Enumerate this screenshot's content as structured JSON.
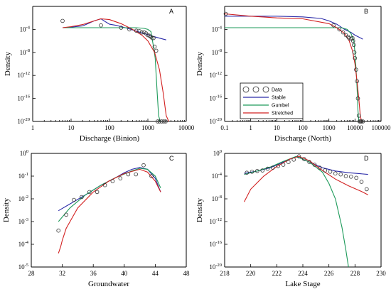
{
  "legend": {
    "items": [
      {
        "label": "Data",
        "kind": "circle"
      },
      {
        "label": "Stable",
        "kind": "line",
        "color": "#2a2aa8"
      },
      {
        "label": "Gumbel",
        "kind": "line",
        "color": "#1d9a5a"
      },
      {
        "label": "Stretched",
        "kind": "line",
        "color": "#d22020"
      }
    ]
  },
  "colors": {
    "stable": "#2a2aa8",
    "gumbel": "#1d9a5a",
    "stretched": "#d22020",
    "data": "#333333"
  },
  "chart_data": [
    {
      "id": "A",
      "type": "line",
      "panel_letter": "A",
      "xlabel": "Discharge (Binion)",
      "ylabel": "Density",
      "xscale": "log",
      "yscale": "log",
      "xlim": [
        1,
        10000
      ],
      "ylim": [
        1e-20,
        1
      ],
      "xticks": [
        {
          "v": 1,
          "t": "1"
        },
        {
          "v": 10,
          "t": "10"
        },
        {
          "v": 100,
          "t": "100"
        },
        {
          "v": 1000,
          "t": "1000"
        },
        {
          "v": 10000,
          "t": "10000"
        }
      ],
      "yticks": [
        {
          "v": 1e-20,
          "b": "10",
          "e": "-20"
        },
        {
          "v": 1e-16,
          "b": "10",
          "e": "-16"
        },
        {
          "v": 1e-12,
          "b": "10",
          "e": "-12"
        },
        {
          "v": 1e-08,
          "b": "10",
          "e": "-8"
        },
        {
          "v": 0.0001,
          "b": "10",
          "e": "-4"
        }
      ],
      "series": [
        {
          "key": "stable",
          "x": [
            6,
            10,
            20,
            40,
            60,
            80,
            100,
            150,
            200,
            300,
            500,
            800,
            1200,
            2000,
            3000
          ],
          "y": [
            0.0002,
            0.00025,
            0.0004,
            0.003,
            0.007,
            0.002,
            0.0008,
            0.0005,
            0.0003,
            0.00015,
            5e-05,
            2e-05,
            8e-06,
            3e-06,
            1.5e-06
          ]
        },
        {
          "key": "gumbel",
          "x": [
            6,
            50,
            200,
            500,
            800,
            1000,
            1200,
            1400,
            1550,
            1650,
            1750,
            1900,
            2100
          ],
          "y": [
            0.0002,
            0.0002,
            0.0002,
            0.0002,
            0.00015,
            0.0001,
            4e-05,
            1e-07,
            1e-09,
            1e-12,
            1e-15,
            1e-19,
            1e-20
          ]
        },
        {
          "key": "stretched",
          "x": [
            6,
            10,
            20,
            40,
            60,
            100,
            200,
            400,
            700,
            1000,
            1500,
            2000,
            2500,
            3000,
            3500
          ],
          "y": [
            0.0002,
            0.0003,
            0.0007,
            0.003,
            0.007,
            0.005,
            0.001,
            0.0001,
            1e-05,
            1e-06,
            1e-08,
            1e-11,
            1e-15,
            1e-19,
            1e-20
          ]
        }
      ],
      "points": {
        "x": [
          6,
          60,
          200,
          330,
          500,
          600,
          700,
          800,
          900,
          1000,
          1100,
          1200,
          1300,
          1400,
          1500,
          1650,
          1800,
          2000,
          2300,
          2600,
          2900
        ],
        "y": [
          0.003,
          0.0005,
          0.0002,
          0.0001,
          6e-05,
          5e-05,
          3e-05,
          3e-05,
          2e-05,
          1e-05,
          8e-06,
          5e-06,
          3e-06,
          3e-06,
          1e-07,
          2e-08,
          1e-20,
          1e-20,
          1e-20,
          1e-20,
          1e-20
        ]
      }
    },
    {
      "id": "B",
      "type": "line",
      "panel_letter": "B",
      "xlabel": "Discharge (North)",
      "ylabel": "Density",
      "xscale": "log",
      "yscale": "log",
      "xlim": [
        0.1,
        100000
      ],
      "ylim": [
        1e-20,
        1
      ],
      "xticks": [
        {
          "v": 0.1,
          "t": "0.1"
        },
        {
          "v": 1,
          "t": "1"
        },
        {
          "v": 10,
          "t": "10"
        },
        {
          "v": 100,
          "t": "100"
        },
        {
          "v": 1000,
          "t": "1000"
        },
        {
          "v": 10000,
          "t": "10000"
        },
        {
          "v": 100000,
          "t": "100000"
        }
      ],
      "yticks": [
        {
          "v": 1e-20,
          "b": "10",
          "e": "-20"
        },
        {
          "v": 1e-16,
          "b": "10",
          "e": "-16"
        },
        {
          "v": 1e-12,
          "b": "10",
          "e": "-12"
        },
        {
          "v": 1e-08,
          "b": "10",
          "e": "-8"
        },
        {
          "v": 0.0001,
          "b": "10",
          "e": "-4"
        }
      ],
      "series": [
        {
          "key": "stable",
          "x": [
            0.1,
            1,
            10,
            100,
            500,
            1000,
            2000,
            4000,
            7000,
            10000,
            15000,
            20000
          ],
          "y": [
            0.02,
            0.02,
            0.02,
            0.015,
            0.008,
            0.003,
            0.0008,
            0.0001,
            3e-05,
            1e-05,
            4e-06,
            2e-06
          ]
        },
        {
          "key": "gumbel",
          "x": [
            0.1,
            1,
            100,
            1000,
            3000,
            5000,
            7000,
            9000,
            10000,
            11000,
            12000,
            13000,
            14000
          ],
          "y": [
            0.0002,
            0.0002,
            0.0002,
            0.0002,
            0.0002,
            0.0001,
            2e-05,
            1e-06,
            1e-08,
            1e-11,
            1e-14,
            1e-18,
            1e-20
          ]
        },
        {
          "key": "stretched",
          "x": [
            0.1,
            1,
            10,
            100,
            1000,
            2000,
            4000,
            6000,
            8000,
            10000,
            12000,
            14000,
            16000,
            18000
          ],
          "y": [
            0.05,
            0.02,
            0.01,
            0.007,
            0.001,
            0.0002,
            2e-05,
            1e-06,
            2e-08,
            1e-10,
            1e-13,
            1e-16,
            1e-19,
            1e-20
          ]
        }
      ],
      "points": {
        "x": [
          0.11,
          1500,
          2500,
          3500,
          4500,
          5500,
          6000,
          7000,
          8000,
          8500,
          9000,
          9500,
          10000,
          11000,
          12000,
          13000,
          14000,
          15000,
          16000,
          17000,
          18000,
          20000
        ],
        "y": [
          0.05,
          0.0005,
          0.0001,
          3e-05,
          1e-05,
          5e-06,
          3e-06,
          2e-06,
          3e-06,
          1e-06,
          2e-07,
          1e-08,
          1e-09,
          1e-11,
          1e-13,
          1e-16,
          1e-19,
          1e-20,
          1e-20,
          1e-20,
          1e-20,
          1e-20
        ]
      }
    },
    {
      "id": "C",
      "type": "line",
      "panel_letter": "C",
      "xlabel": "Groundwater",
      "ylabel": "Density",
      "xscale": "linear",
      "yscale": "log",
      "xlim": [
        28,
        48
      ],
      "ylim": [
        1e-05,
        1
      ],
      "xticks": [
        {
          "v": 28,
          "t": "28"
        },
        {
          "v": 32,
          "t": "32"
        },
        {
          "v": 36,
          "t": "36"
        },
        {
          "v": 40,
          "t": "40"
        },
        {
          "v": 44,
          "t": "44"
        },
        {
          "v": 48,
          "t": "48"
        }
      ],
      "yticks": [
        {
          "v": 1e-05,
          "b": "10",
          "e": "-5"
        },
        {
          "v": 0.0001,
          "b": "10",
          "e": "-4"
        },
        {
          "v": 0.001,
          "b": "10",
          "e": "-3"
        },
        {
          "v": 0.01,
          "b": "10",
          "e": "-2"
        },
        {
          "v": 0.1,
          "b": "10",
          "e": "-1"
        },
        {
          "v": 1,
          "b": "10",
          "e": "0"
        }
      ],
      "series": [
        {
          "key": "stable",
          "x": [
            31.5,
            33,
            35,
            37,
            39,
            40,
            41,
            42,
            43,
            44,
            44.7
          ],
          "y": [
            0.003,
            0.006,
            0.015,
            0.04,
            0.09,
            0.14,
            0.2,
            0.24,
            0.2,
            0.08,
            0.02
          ]
        },
        {
          "key": "gumbel",
          "x": [
            31.5,
            33,
            35,
            37,
            39,
            41,
            42,
            43,
            44,
            44.7
          ],
          "y": [
            0.001,
            0.004,
            0.015,
            0.04,
            0.09,
            0.17,
            0.22,
            0.2,
            0.1,
            0.03
          ]
        },
        {
          "key": "stretched",
          "x": [
            31.5,
            31.8,
            32,
            32.5,
            33,
            34,
            36,
            38,
            40,
            42,
            43,
            44,
            44.7
          ],
          "y": [
            4e-05,
            8e-05,
            0.00015,
            0.0005,
            0.001,
            0.004,
            0.02,
            0.06,
            0.13,
            0.2,
            0.15,
            0.06,
            0.02
          ]
        }
      ],
      "points": {
        "x": [
          31.5,
          32.5,
          33.5,
          34.5,
          35.5,
          36.5,
          37.5,
          38.5,
          39.5,
          40.5,
          41.5,
          42.5,
          43.5
        ],
        "y": [
          0.0004,
          0.002,
          0.009,
          0.012,
          0.02,
          0.02,
          0.04,
          0.06,
          0.08,
          0.12,
          0.12,
          0.3,
          0.1
        ]
      }
    },
    {
      "id": "D",
      "type": "line",
      "panel_letter": "D",
      "xlabel": "Lake Stage",
      "ylabel": "Density",
      "xscale": "linear",
      "yscale": "log",
      "xlim": [
        218,
        230
      ],
      "ylim": [
        1e-20,
        1
      ],
      "xticks": [
        {
          "v": 218,
          "t": "218"
        },
        {
          "v": 220,
          "t": "220"
        },
        {
          "v": 222,
          "t": "222"
        },
        {
          "v": 224,
          "t": "224"
        },
        {
          "v": 226,
          "t": "226"
        },
        {
          "v": 228,
          "t": "228"
        },
        {
          "v": 230,
          "t": "230"
        }
      ],
      "yticks": [
        {
          "v": 1e-20,
          "b": "10",
          "e": "-20"
        },
        {
          "v": 1e-16,
          "b": "10",
          "e": "-16"
        },
        {
          "v": 1e-12,
          "b": "10",
          "e": "-12"
        },
        {
          "v": 1e-08,
          "b": "10",
          "e": "-8"
        },
        {
          "v": 0.0001,
          "b": "10",
          "e": "-4"
        },
        {
          "v": 1,
          "b": "10",
          "e": "0"
        }
      ],
      "series": [
        {
          "key": "stable",
          "x": [
            219.5,
            220.5,
            221.5,
            222.5,
            223.5,
            224.5,
            225.5,
            226.5,
            227.5,
            229
          ],
          "y": [
            0.0003,
            0.0008,
            0.003,
            0.03,
            0.3,
            0.03,
            0.003,
            0.0008,
            0.0004,
            0.0002
          ]
        },
        {
          "key": "gumbel",
          "x": [
            219.5,
            220.5,
            221.5,
            222.5,
            223.5,
            224.5,
            225.5,
            226,
            226.5,
            227,
            227.3,
            227.5
          ],
          "y": [
            0.0002,
            0.0008,
            0.004,
            0.04,
            0.3,
            0.03,
            0.0005,
            5e-06,
            1e-08,
            1e-13,
            1e-17,
            1e-20
          ]
        },
        {
          "key": "stretched",
          "x": [
            219.5,
            220,
            221,
            222,
            223,
            223.7,
            224.5,
            225.5,
            226.5,
            227.5,
            228.5,
            229
          ],
          "y": [
            3e-09,
            5e-07,
            0.0001,
            0.005,
            0.1,
            0.3,
            0.05,
            0.001,
            3e-05,
            2e-06,
            2e-07,
            5e-08
          ]
        }
      ],
      "points": {
        "x": [
          219.7,
          220.1,
          220.5,
          220.9,
          221.3,
          221.7,
          222.1,
          222.5,
          222.9,
          223.3,
          223.7,
          224.1,
          224.5,
          224.9,
          225.3,
          225.7,
          226.1,
          226.5,
          226.9,
          227.3,
          227.7,
          228.1,
          228.5,
          228.9
        ],
        "y": [
          0.0004,
          0.0006,
          0.0008,
          0.001,
          0.002,
          0.003,
          0.006,
          0.01,
          0.03,
          0.08,
          0.3,
          0.1,
          0.03,
          0.01,
          0.003,
          0.001,
          0.0006,
          0.0003,
          0.0002,
          0.0001,
          8e-05,
          5e-05,
          1e-05,
          5e-07
        ]
      }
    }
  ]
}
